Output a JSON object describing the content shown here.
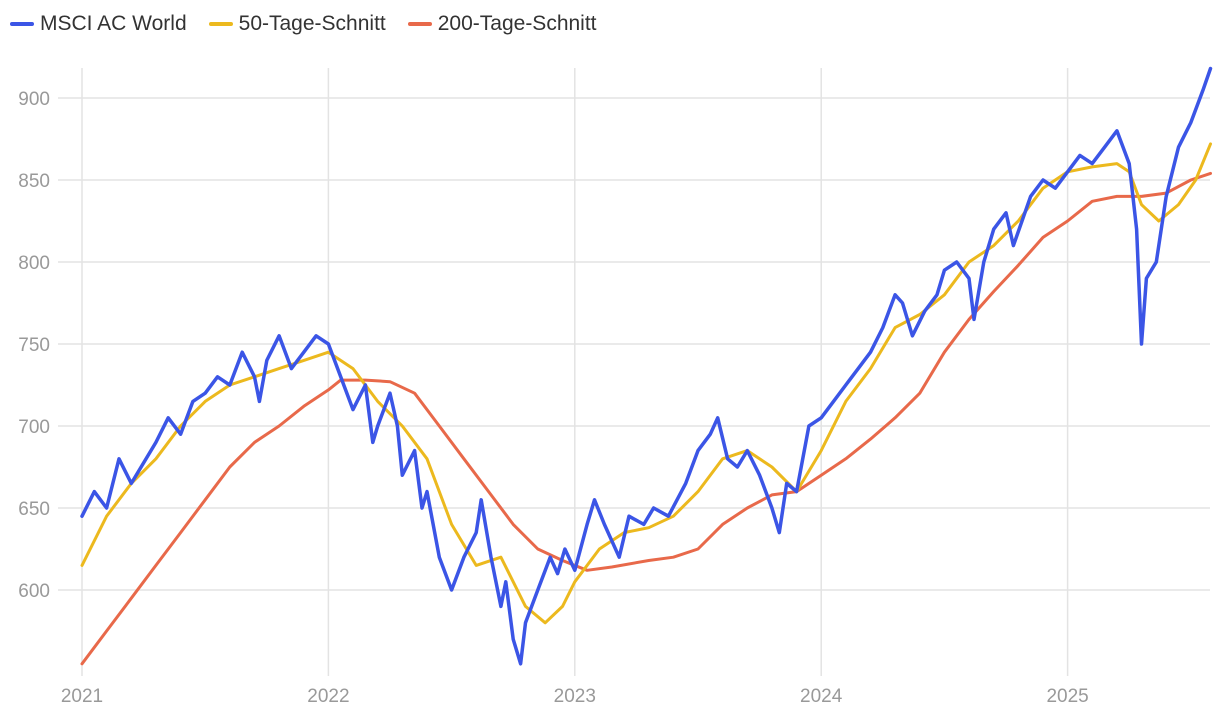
{
  "chart_data": {
    "type": "line",
    "title": "",
    "xlabel": "",
    "ylabel": "",
    "xlim": [
      2021.0,
      2025.6
    ],
    "ylim": [
      551,
      920
    ],
    "grid": true,
    "legend_position": "top-left",
    "x_ticks": [
      2021,
      2022,
      2023,
      2024,
      2025
    ],
    "x_tick_labels": [
      "2021",
      "2022",
      "2023",
      "2024",
      "2025"
    ],
    "y_ticks": [
      600,
      650,
      700,
      750,
      800,
      850,
      900
    ],
    "y_tick_labels": [
      "600",
      "650",
      "700",
      "750",
      "800",
      "850",
      "900"
    ],
    "series": [
      {
        "name": "MSCI AC World",
        "color": "#3b55e6",
        "x": [
          2021.0,
          2021.05,
          2021.1,
          2021.15,
          2021.2,
          2021.3,
          2021.35,
          2021.4,
          2021.45,
          2021.5,
          2021.55,
          2021.6,
          2021.65,
          2021.7,
          2021.72,
          2021.75,
          2021.8,
          2021.85,
          2021.9,
          2021.95,
          2022.0,
          2022.05,
          2022.1,
          2022.15,
          2022.18,
          2022.2,
          2022.25,
          2022.28,
          2022.3,
          2022.35,
          2022.38,
          2022.4,
          2022.45,
          2022.5,
          2022.55,
          2022.6,
          2022.62,
          2022.66,
          2022.7,
          2022.72,
          2022.75,
          2022.78,
          2022.8,
          2022.85,
          2022.9,
          2022.93,
          2022.96,
          2023.0,
          2023.05,
          2023.08,
          2023.12,
          2023.18,
          2023.22,
          2023.28,
          2023.32,
          2023.38,
          2023.45,
          2023.5,
          2023.55,
          2023.58,
          2023.62,
          2023.66,
          2023.7,
          2023.75,
          2023.8,
          2023.83,
          2023.86,
          2023.9,
          2023.95,
          2024.0,
          2024.05,
          2024.1,
          2024.15,
          2024.2,
          2024.25,
          2024.3,
          2024.33,
          2024.37,
          2024.42,
          2024.47,
          2024.5,
          2024.55,
          2024.6,
          2024.62,
          2024.66,
          2024.7,
          2024.75,
          2024.78,
          2024.85,
          2024.9,
          2024.95,
          2025.0,
          2025.05,
          2025.1,
          2025.15,
          2025.2,
          2025.25,
          2025.28,
          2025.3,
          2025.32,
          2025.36,
          2025.4,
          2025.45,
          2025.5,
          2025.55,
          2025.58
        ],
        "values": [
          645,
          660,
          650,
          680,
          665,
          690,
          705,
          695,
          715,
          720,
          730,
          725,
          745,
          730,
          715,
          740,
          755,
          735,
          745,
          755,
          750,
          730,
          710,
          725,
          690,
          700,
          720,
          700,
          670,
          685,
          650,
          660,
          620,
          600,
          620,
          635,
          655,
          620,
          590,
          605,
          570,
          555,
          580,
          600,
          620,
          610,
          625,
          612,
          640,
          655,
          640,
          620,
          645,
          640,
          650,
          645,
          665,
          685,
          695,
          705,
          680,
          675,
          685,
          670,
          650,
          635,
          665,
          660,
          700,
          705,
          715,
          725,
          735,
          745,
          760,
          780,
          775,
          755,
          770,
          780,
          795,
          800,
          790,
          765,
          800,
          820,
          830,
          810,
          840,
          850,
          845,
          855,
          865,
          860,
          870,
          880,
          860,
          820,
          750,
          790,
          800,
          840,
          870,
          885,
          905,
          918
        ]
      },
      {
        "name": "50-Tage-Schnitt",
        "color": "#ecb91e",
        "x": [
          2021.0,
          2021.1,
          2021.2,
          2021.3,
          2021.4,
          2021.5,
          2021.6,
          2021.7,
          2021.8,
          2021.9,
          2022.0,
          2022.1,
          2022.2,
          2022.3,
          2022.4,
          2022.5,
          2022.6,
          2022.7,
          2022.8,
          2022.88,
          2022.95,
          2023.0,
          2023.1,
          2023.2,
          2023.3,
          2023.4,
          2023.5,
          2023.6,
          2023.7,
          2023.8,
          2023.9,
          2024.0,
          2024.1,
          2024.2,
          2024.3,
          2024.4,
          2024.5,
          2024.6,
          2024.7,
          2024.8,
          2024.9,
          2025.0,
          2025.1,
          2025.2,
          2025.25,
          2025.3,
          2025.37,
          2025.45,
          2025.52,
          2025.58
        ],
        "values": [
          615,
          645,
          665,
          680,
          700,
          715,
          725,
          730,
          735,
          740,
          745,
          735,
          715,
          700,
          680,
          640,
          615,
          620,
          590,
          580,
          590,
          605,
          625,
          635,
          638,
          645,
          660,
          680,
          685,
          675,
          660,
          685,
          715,
          735,
          760,
          768,
          780,
          800,
          810,
          825,
          845,
          855,
          858,
          860,
          855,
          835,
          825,
          835,
          850,
          872
        ]
      },
      {
        "name": "200-Tage-Schnitt",
        "color": "#e8694a",
        "x": [
          2021.0,
          2021.1,
          2021.2,
          2021.3,
          2021.4,
          2021.5,
          2021.6,
          2021.7,
          2021.8,
          2021.9,
          2022.0,
          2022.05,
          2022.15,
          2022.25,
          2022.35,
          2022.45,
          2022.55,
          2022.65,
          2022.75,
          2022.85,
          2022.95,
          2023.05,
          2023.15,
          2023.3,
          2023.4,
          2023.5,
          2023.6,
          2023.7,
          2023.8,
          2023.9,
          2024.0,
          2024.1,
          2024.2,
          2024.3,
          2024.4,
          2024.5,
          2024.6,
          2024.7,
          2024.8,
          2024.9,
          2025.0,
          2025.1,
          2025.2,
          2025.3,
          2025.4,
          2025.5,
          2025.58
        ],
        "values": [
          555,
          575,
          595,
          615,
          635,
          655,
          675,
          690,
          700,
          712,
          722,
          728,
          728,
          727,
          720,
          700,
          680,
          660,
          640,
          625,
          618,
          612,
          614,
          618,
          620,
          625,
          640,
          650,
          658,
          660,
          670,
          680,
          692,
          705,
          720,
          745,
          765,
          782,
          798,
          815,
          825,
          837,
          840,
          840,
          842,
          850,
          854
        ]
      }
    ]
  }
}
